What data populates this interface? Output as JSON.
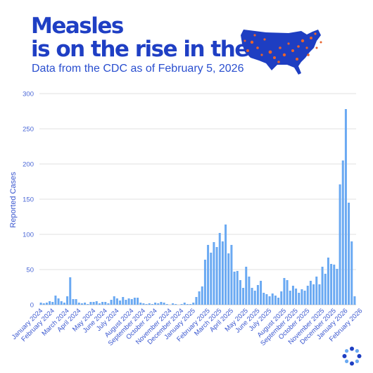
{
  "title_line1": "Measles",
  "title_line2": "is on the rise in the U.S.",
  "subtitle": "Data from the CDC as of February 5, 2026",
  "colors": {
    "title": "#1f3fc4",
    "bar": "#6aa9f2",
    "grid": "#e2e2e2",
    "map": "#1e3ec2",
    "dot": "#e8632c"
  },
  "icons": [
    "us-map-icon",
    "logo-icon"
  ],
  "chart_data": {
    "type": "bar",
    "title": "",
    "ylabel": "Reported Cases",
    "xlabel": "",
    "ylim": [
      0,
      300
    ],
    "yticks": [
      0,
      50,
      100,
      150,
      200,
      250,
      300
    ],
    "grid": true,
    "x_tick_labels": [
      {
        "label": "January 2024",
        "bar_index": 0
      },
      {
        "label": "February 2024",
        "bar_index": 4
      },
      {
        "label": "March 2024",
        "bar_index": 9
      },
      {
        "label": "April 2024",
        "bar_index": 13
      },
      {
        "label": "May 2024",
        "bar_index": 18
      },
      {
        "label": "June 2024",
        "bar_index": 22
      },
      {
        "label": "July 2024",
        "bar_index": 26
      },
      {
        "label": "August 2024",
        "bar_index": 31
      },
      {
        "label": "September 2024",
        "bar_index": 35
      },
      {
        "label": "October 2024",
        "bar_index": 39
      },
      {
        "label": "November 2024",
        "bar_index": 44
      },
      {
        "label": "December 2024",
        "bar_index": 48
      },
      {
        "label": "January 2025",
        "bar_index": 52
      },
      {
        "label": "February 2025",
        "bar_index": 57
      },
      {
        "label": "March 2025",
        "bar_index": 61
      },
      {
        "label": "April 2025",
        "bar_index": 65
      },
      {
        "label": "May 2025",
        "bar_index": 70
      },
      {
        "label": "June 2025",
        "bar_index": 74
      },
      {
        "label": "July 2025",
        "bar_index": 78
      },
      {
        "label": "August 2025",
        "bar_index": 83
      },
      {
        "label": "September 2025",
        "bar_index": 87
      },
      {
        "label": "October 2025",
        "bar_index": 91
      },
      {
        "label": "November 2025",
        "bar_index": 96
      },
      {
        "label": "December 2025",
        "bar_index": 100
      },
      {
        "label": "January 2026",
        "bar_index": 104
      },
      {
        "label": "February 2026",
        "bar_index": 109
      }
    ],
    "values": [
      3,
      2,
      3,
      5,
      4,
      13,
      9,
      5,
      3,
      12,
      39,
      8,
      8,
      3,
      2,
      3,
      1,
      4,
      4,
      5,
      2,
      4,
      4,
      2,
      7,
      12,
      9,
      6,
      11,
      7,
      9,
      8,
      10,
      10,
      3,
      2,
      1,
      2,
      1,
      3,
      2,
      4,
      3,
      1,
      0,
      2,
      1,
      0,
      1,
      3,
      1,
      1,
      3,
      11,
      19,
      26,
      64,
      85,
      74,
      89,
      82,
      102,
      90,
      114,
      73,
      85,
      47,
      48,
      35,
      24,
      54,
      40,
      24,
      20,
      28,
      34,
      17,
      15,
      12,
      16,
      13,
      10,
      19,
      38,
      35,
      20,
      27,
      23,
      17,
      22,
      20,
      27,
      34,
      29,
      40,
      29,
      54,
      44,
      67,
      58,
      57,
      51,
      171,
      205,
      278,
      145,
      90,
      12
    ]
  }
}
